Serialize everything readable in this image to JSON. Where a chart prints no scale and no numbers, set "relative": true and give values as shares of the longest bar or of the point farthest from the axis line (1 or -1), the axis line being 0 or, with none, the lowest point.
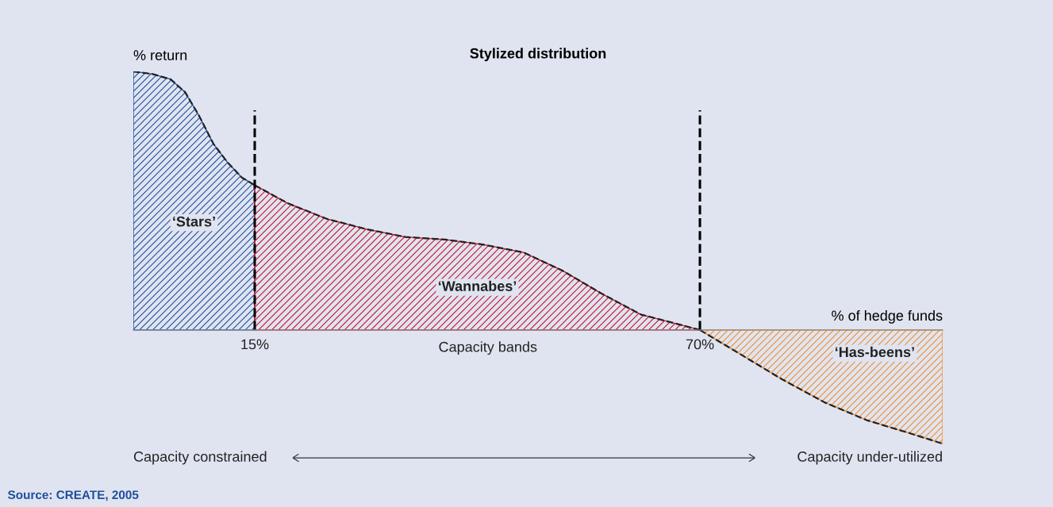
{
  "chart_data": {
    "type": "area",
    "relative": true,
    "title": "Stylized distribution",
    "ylabel": "% return",
    "xlabel": "% of hedge funds",
    "xlim": [
      0,
      100
    ],
    "xticks": [
      {
        "value": 15,
        "label": "15%"
      },
      {
        "value": 70,
        "label": "70%"
      }
    ],
    "line_style": "dashed",
    "grid": false,
    "legend": false,
    "series": [
      {
        "name": "‘Stars’",
        "color": "#1f4e9c",
        "x": [
          0,
          2.4,
          4.6,
          6.4,
          8.1,
          9.9,
          11.6,
          13.4,
          15
        ],
        "values": [
          1.0,
          0.99,
          0.97,
          0.92,
          0.83,
          0.72,
          0.65,
          0.59,
          0.56
        ]
      },
      {
        "name": "‘Wannabes’",
        "color": "#c8102e",
        "x": [
          15,
          19.1,
          23.9,
          28.8,
          33.6,
          38.5,
          43.3,
          48.2,
          53.0,
          57.9,
          62.7,
          67.6,
          70
        ],
        "values": [
          0.56,
          0.49,
          0.43,
          0.39,
          0.36,
          0.35,
          0.33,
          0.3,
          0.23,
          0.14,
          0.06,
          0.02,
          0
        ]
      },
      {
        "name": "‘Has-beens’",
        "color": "#f28c28",
        "x": [
          70,
          74.8,
          80.1,
          85.4,
          90.7,
          96.0,
          100
        ],
        "values": [
          0,
          -0.09,
          -0.19,
          -0.28,
          -0.35,
          -0.4,
          -0.44
        ]
      }
    ],
    "ref_lines": [
      {
        "axis": "x",
        "value": 15,
        "color": "#000000",
        "line_style": "dashed"
      },
      {
        "axis": "x",
        "value": 70,
        "color": "#000000",
        "line_style": "dashed"
      }
    ],
    "annotations": [
      "Capacity bands",
      "Capacity constrained",
      "Capacity under-utilized",
      "Source: CREATE, 2005"
    ]
  }
}
